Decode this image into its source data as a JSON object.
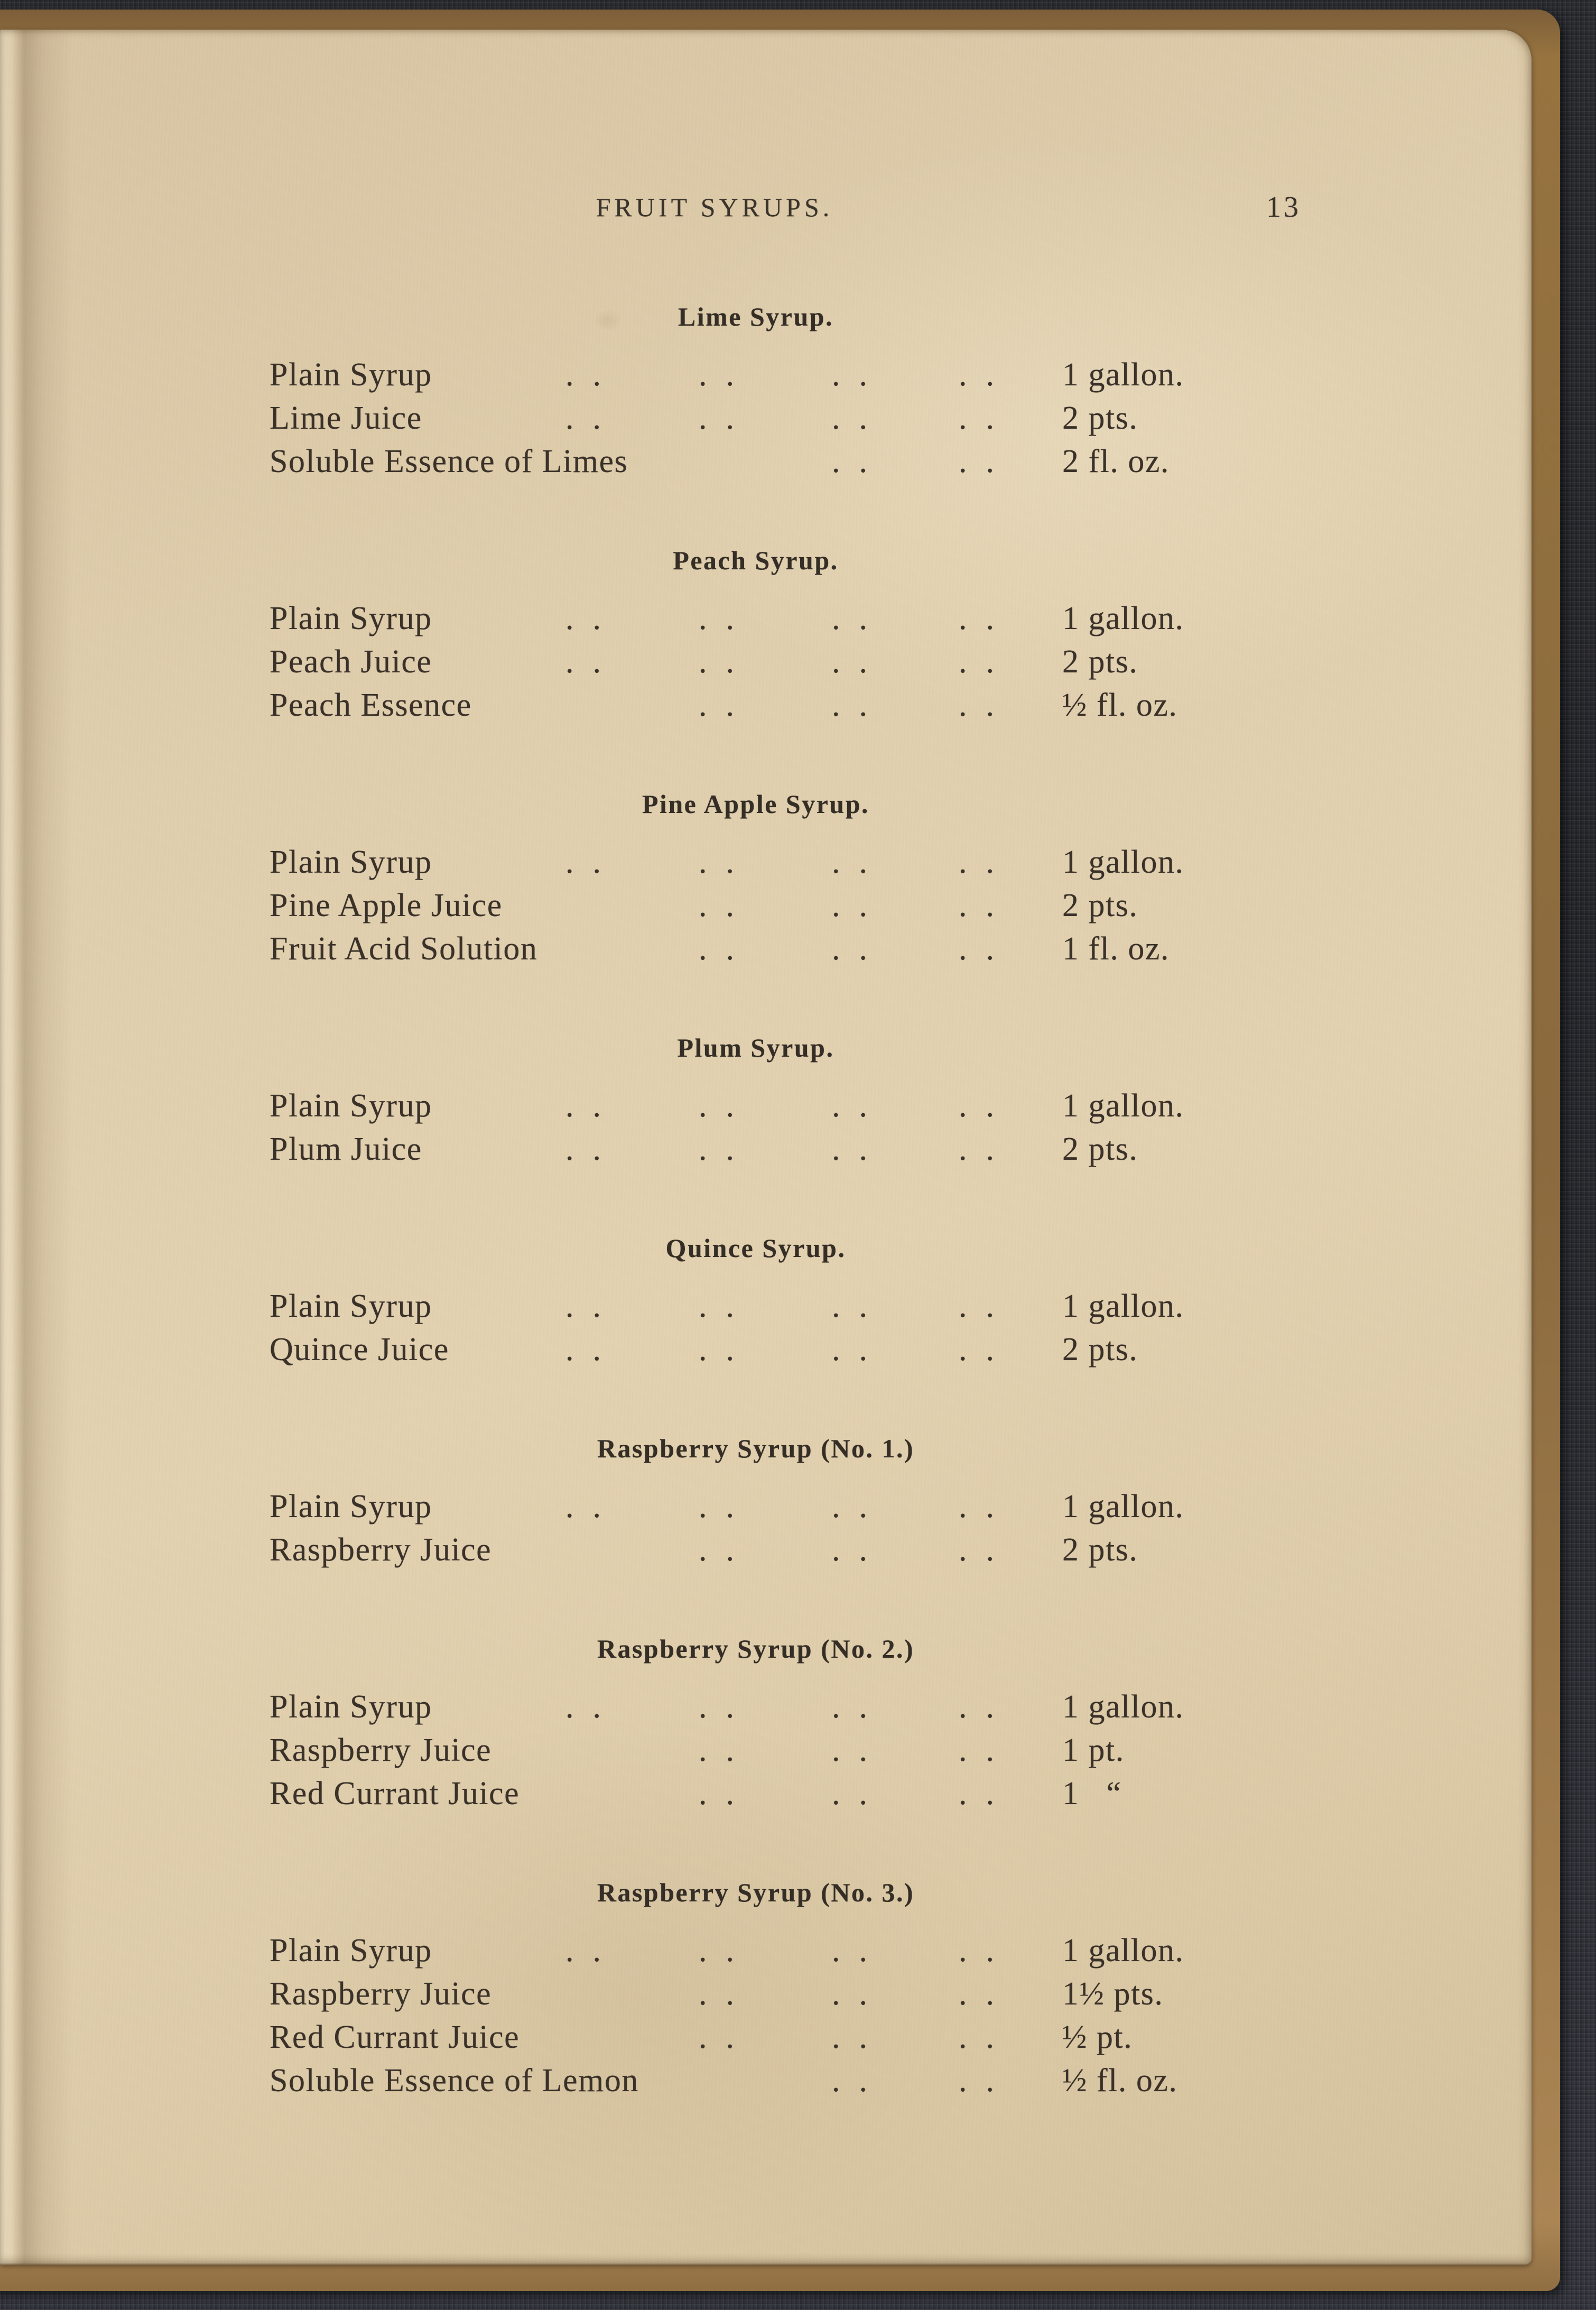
{
  "book": {
    "running_header": "FRUIT SYRUPS.",
    "page_number": "13"
  },
  "recipes": [
    {
      "title": "Lime Syrup.",
      "rows": [
        {
          "ingredient": "Plain Syrup",
          "dot_groups": 4,
          "amount": "1 gallon."
        },
        {
          "ingredient": "Lime Juice",
          "dot_groups": 4,
          "amount": "2 pts."
        },
        {
          "ingredient": "Soluble Essence of Limes",
          "dot_groups": 2,
          "amount": "2 fl. oz."
        }
      ]
    },
    {
      "title": "Peach Syrup.",
      "rows": [
        {
          "ingredient": "Plain Syrup",
          "dot_groups": 4,
          "amount": "1 gallon."
        },
        {
          "ingredient": "Peach Juice",
          "dot_groups": 4,
          "amount": "2 pts."
        },
        {
          "ingredient": "Peach Essence",
          "dot_groups": 3,
          "amount": "½ fl. oz."
        }
      ]
    },
    {
      "title": "Pine Apple Syrup.",
      "rows": [
        {
          "ingredient": "Plain Syrup",
          "dot_groups": 4,
          "amount": "1 gallon."
        },
        {
          "ingredient": "Pine Apple Juice",
          "dot_groups": 3,
          "amount": "2 pts."
        },
        {
          "ingredient": "Fruit Acid Solution",
          "dot_groups": 3,
          "amount": "1 fl. oz."
        }
      ]
    },
    {
      "title": "Plum Syrup.",
      "rows": [
        {
          "ingredient": "Plain Syrup",
          "dot_groups": 4,
          "amount": "1 gallon."
        },
        {
          "ingredient": "Plum Juice",
          "dot_groups": 4,
          "amount": "2 pts."
        }
      ]
    },
    {
      "title": "Quince Syrup.",
      "rows": [
        {
          "ingredient": "Plain Syrup",
          "dot_groups": 4,
          "amount": "1 gallon."
        },
        {
          "ingredient": "Quince Juice",
          "dot_groups": 4,
          "amount": "2 pts."
        }
      ]
    },
    {
      "title": "Raspberry Syrup (No. 1.)",
      "rows": [
        {
          "ingredient": "Plain Syrup",
          "dot_groups": 4,
          "amount": "1 gallon."
        },
        {
          "ingredient": "Raspberry Juice",
          "dot_groups": 3,
          "amount": "2 pts."
        }
      ]
    },
    {
      "title": "Raspberry Syrup (No. 2.)",
      "rows": [
        {
          "ingredient": "Plain Syrup",
          "dot_groups": 4,
          "amount": "1 gallon."
        },
        {
          "ingredient": "Raspberry Juice",
          "dot_groups": 3,
          "amount": "1 pt."
        },
        {
          "ingredient": "Red Currant Juice",
          "dot_groups": 3,
          "amount": "1   “"
        }
      ]
    },
    {
      "title": "Raspberry Syrup (No. 3.)",
      "rows": [
        {
          "ingredient": "Plain Syrup",
          "dot_groups": 4,
          "amount": "1 gallon."
        },
        {
          "ingredient": "Raspberry Juice",
          "dot_groups": 3,
          "amount": "1½ pts."
        },
        {
          "ingredient": "Red Currant Juice",
          "dot_groups": 3,
          "amount": "½ pt."
        },
        {
          "ingredient": "Soluble Essence of Lemon",
          "dot_groups": 2,
          "amount": "½ fl. oz."
        }
      ]
    }
  ],
  "colors": {
    "paper": "#e0cfae",
    "ink": "#3a3129",
    "cover_cloth": "#2b2c31",
    "cover_edge": "#96733f"
  }
}
